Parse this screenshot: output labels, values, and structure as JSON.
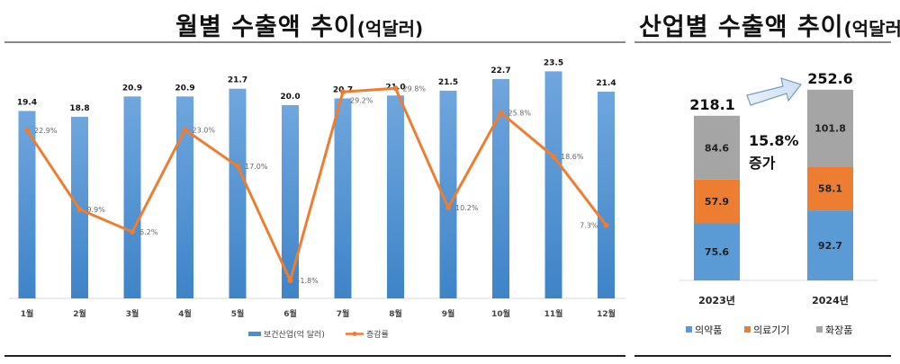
{
  "left_panel": {
    "title_main": "월별 수출액 추이",
    "title_unit": "(억달러)"
  },
  "right_panel": {
    "title_main": "산업별 수출액 추이",
    "title_unit": "(억달러)",
    "growth_pct": "15.8%",
    "growth_label": "증가"
  },
  "colors": {
    "bar_blue": "#4a8fd4",
    "line_orange": "#ed7d31",
    "gray": "#a5a5a5"
  },
  "chart_data": [
    {
      "type": "bar+line",
      "title": "월별 수출액 추이(억달러)",
      "categories": [
        "1월",
        "2월",
        "3월",
        "4월",
        "5월",
        "6월",
        "7월",
        "8월",
        "9월",
        "10월",
        "11월",
        "12월"
      ],
      "series": [
        {
          "name": "보건산업(억 달러)",
          "type": "bar",
          "values": [
            19.4,
            18.8,
            20.9,
            20.9,
            21.7,
            20.0,
            20.7,
            21.0,
            21.5,
            22.7,
            23.5,
            21.4
          ],
          "labels": [
            "19.4",
            "18.8",
            "20.9",
            "20.9",
            "21.7",
            "20.0",
            "20.7",
            "21.0",
            "21.5",
            "22.7",
            "23.5",
            "21.4"
          ]
        },
        {
          "name": "증감률",
          "type": "line",
          "values": [
            22.9,
            9.9,
            6.2,
            23.0,
            17.0,
            -1.8,
            29.2,
            29.8,
            10.2,
            25.8,
            18.6,
            7.3
          ],
          "labels": [
            "22.9%",
            "9.9%",
            "6.2%",
            "23.0%",
            "17.0%",
            "-1.8%",
            "29.2%",
            "29.8%",
            "10.2%",
            "25.8%",
            "18.6%",
            "7.3%"
          ]
        }
      ],
      "legend": "bottom",
      "grid": false
    },
    {
      "type": "stacked-bar",
      "title": "산업별 수출액 추이(억달러)",
      "categories": [
        "2023년",
        "2024년"
      ],
      "totals": [
        "218.1",
        "252.6"
      ],
      "series": [
        {
          "name": "의약품",
          "values": [
            75.6,
            92.7
          ],
          "labels": [
            "75.6",
            "92.7"
          ]
        },
        {
          "name": "의료기기",
          "values": [
            57.9,
            58.1
          ],
          "labels": [
            "57.9",
            "58.1"
          ]
        },
        {
          "name": "화장품",
          "values": [
            84.6,
            101.8
          ],
          "labels": [
            "84.6",
            "101.8"
          ]
        }
      ],
      "legend": "bottom"
    }
  ]
}
